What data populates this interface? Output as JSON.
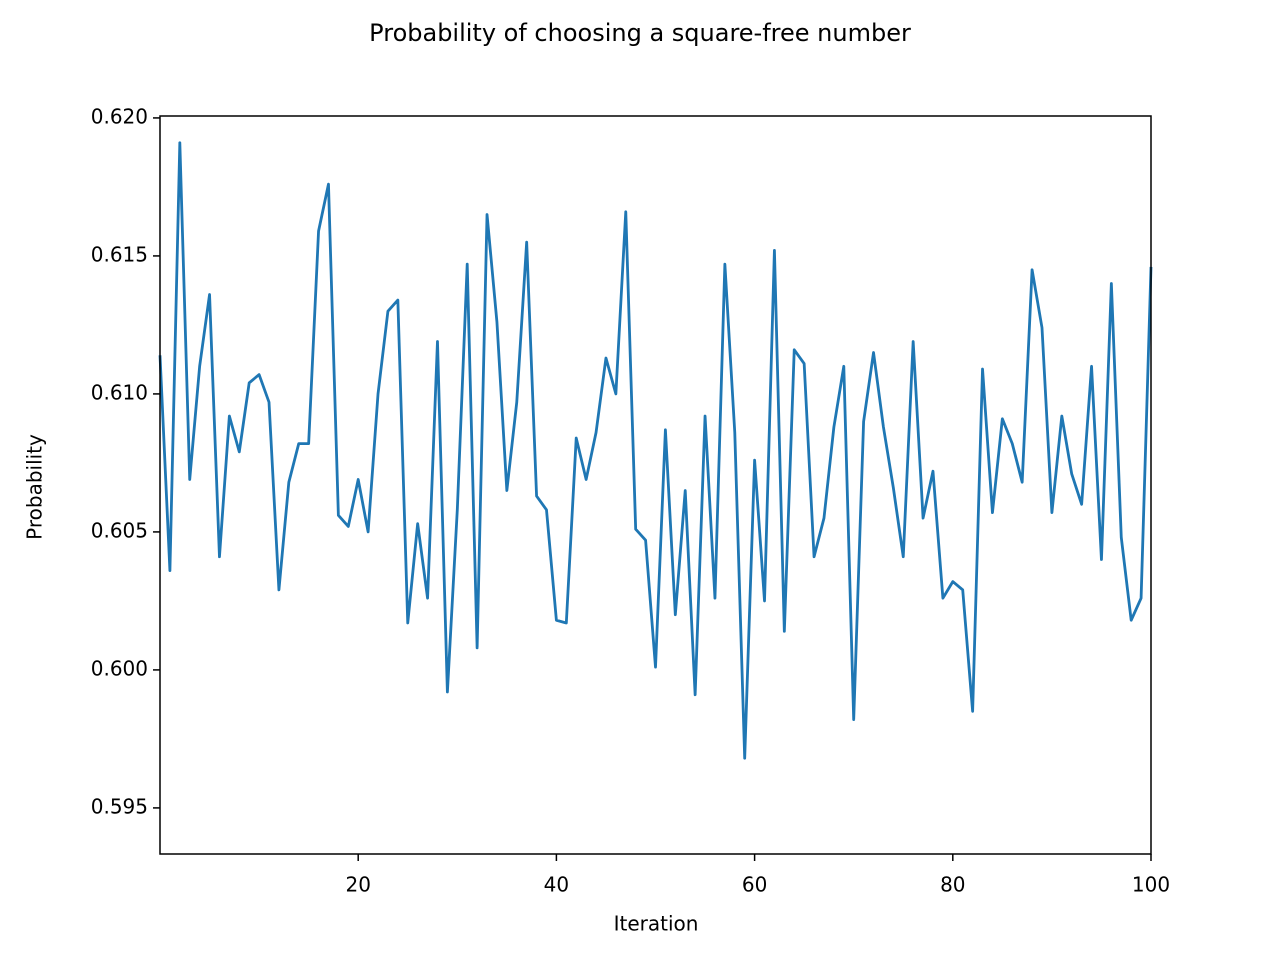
{
  "chart_data": {
    "type": "line",
    "title": "Probability of choosing a square-free number",
    "x_label": "Iteration",
    "y_label": "Probability",
    "color": "#1f77b4",
    "x": [
      0,
      1,
      2,
      3,
      4,
      5,
      6,
      7,
      8,
      9,
      10,
      11,
      12,
      13,
      14,
      15,
      16,
      17,
      18,
      19,
      20,
      21,
      22,
      23,
      24,
      25,
      26,
      27,
      28,
      29,
      30,
      31,
      32,
      33,
      34,
      35,
      36,
      37,
      38,
      39,
      40,
      41,
      42,
      43,
      44,
      45,
      46,
      47,
      48,
      49,
      50,
      51,
      52,
      53,
      54,
      55,
      56,
      57,
      58,
      59,
      60,
      61,
      62,
      63,
      64,
      65,
      66,
      67,
      68,
      69,
      70,
      71,
      72,
      73,
      74,
      75,
      76,
      77,
      78,
      79,
      80,
      81,
      82,
      83,
      84,
      85,
      86,
      87,
      88,
      89,
      90,
      91,
      92,
      93,
      94,
      95,
      96,
      97,
      98,
      99,
      100
    ],
    "values": [
      0.6114,
      0.6036,
      0.6191,
      0.6069,
      0.611,
      0.6136,
      0.6041,
      0.6092,
      0.6079,
      0.6104,
      0.6107,
      0.6097,
      0.6029,
      0.6068,
      0.6082,
      0.6082,
      0.6159,
      0.6176,
      0.6056,
      0.6052,
      0.6069,
      0.605,
      0.61,
      0.613,
      0.6134,
      0.6017,
      0.6053,
      0.6026,
      0.6119,
      0.5992,
      0.6058,
      0.6147,
      0.6008,
      0.6165,
      0.6126,
      0.6065,
      0.6097,
      0.6155,
      0.6063,
      0.6058,
      0.6018,
      0.6017,
      0.6084,
      0.6069,
      0.6086,
      0.6113,
      0.61,
      0.6166,
      0.6051,
      0.6047,
      0.6001,
      0.6087,
      0.602,
      0.6065,
      0.5991,
      0.6092,
      0.6026,
      0.6147,
      0.6086,
      0.5968,
      0.6076,
      0.6025,
      0.6152,
      0.6014,
      0.6116,
      0.6111,
      0.6041,
      0.6055,
      0.6088,
      0.611,
      0.5982,
      0.609,
      0.6115,
      0.6088,
      0.6066,
      0.6041,
      0.6119,
      0.6055,
      0.6072,
      0.6026,
      0.6032,
      0.6029,
      0.5985,
      0.6109,
      0.6057,
      0.6091,
      0.6082,
      0.6068,
      0.6145,
      0.6124,
      0.6057,
      0.6092,
      0.6071,
      0.606,
      0.611,
      0.604,
      0.614,
      0.6048,
      0.6018,
      0.6026,
      0.6146
    ],
    "xlim": [
      0,
      100
    ],
    "xticks": [
      20,
      40,
      60,
      80,
      100
    ],
    "ylim": [
      0.59333,
      0.62007
    ],
    "yticks": [
      0.595,
      {
        "value": 0.6,
        "label": "0.600"
      },
      0.605,
      {
        "value": 0.61,
        "label": "0.610"
      },
      0.615,
      {
        "value": 0.62,
        "label": "0.620"
      }
    ]
  }
}
